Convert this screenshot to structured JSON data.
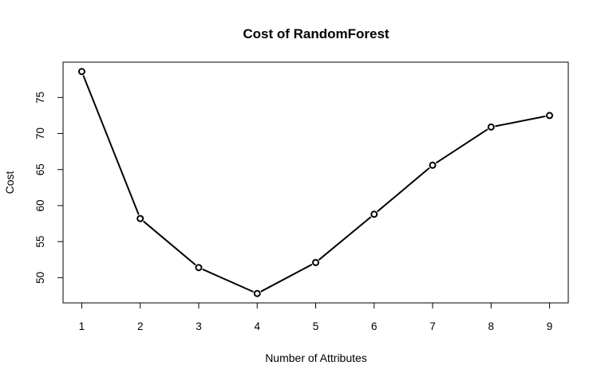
{
  "chart_data": {
    "type": "line",
    "title": "Cost of RandomForest",
    "xlabel": "Number of Attributes",
    "ylabel": "Cost",
    "x": [
      1,
      2,
      3,
      4,
      5,
      6,
      7,
      8,
      9
    ],
    "series": [
      {
        "values": [
          78.6,
          58.2,
          51.4,
          47.8,
          52.1,
          58.8,
          65.6,
          70.9,
          72.5
        ]
      }
    ],
    "xticks": [
      1,
      2,
      3,
      4,
      5,
      6,
      7,
      8,
      9
    ],
    "xtick_labels": [
      "1",
      "2",
      "3",
      "4",
      "5",
      "6",
      "7",
      "8",
      "9"
    ],
    "yticks": [
      50,
      55,
      60,
      65,
      70,
      75
    ],
    "ytick_labels": [
      "50",
      "55",
      "60",
      "65",
      "70",
      "75"
    ],
    "xlim": [
      0.68,
      9.32
    ],
    "ylim": [
      46.5,
      79.9
    ],
    "grid": false,
    "marker": "open-circle",
    "line_color": "#000000"
  }
}
